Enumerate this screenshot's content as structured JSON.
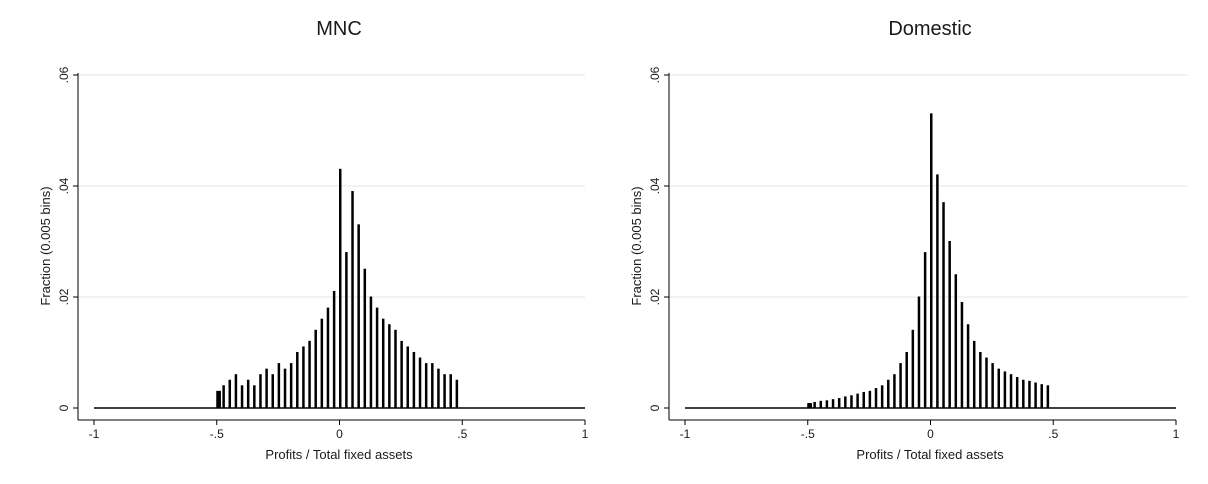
{
  "chart_data": [
    {
      "type": "bar",
      "title": "MNC",
      "xlabel": "Profits / Total fixed assets",
      "ylabel": "Fraction (0.005 bins)",
      "xlim": [
        -1,
        1
      ],
      "ylim": [
        0,
        0.06
      ],
      "xticks": [
        -1,
        -0.5,
        0,
        0.5,
        1
      ],
      "xtick_labels": [
        "-1",
        "-.5",
        "0",
        ".5",
        "1"
      ],
      "yticks": [
        0,
        0.02,
        0.04,
        0.06
      ],
      "ytick_labels": [
        "0",
        ".02",
        ".04",
        ".06"
      ],
      "grid": true,
      "bin_width": 0.005,
      "x": [
        -0.5,
        -0.475,
        -0.45,
        -0.425,
        -0.4,
        -0.375,
        -0.35,
        -0.325,
        -0.3,
        -0.275,
        -0.25,
        -0.225,
        -0.2,
        -0.175,
        -0.15,
        -0.125,
        -0.1,
        -0.075,
        -0.05,
        -0.025,
        0.0,
        0.025,
        0.05,
        0.075,
        0.1,
        0.125,
        0.15,
        0.175,
        0.2,
        0.225,
        0.25,
        0.275,
        0.3,
        0.325,
        0.35,
        0.375,
        0.4,
        0.425,
        0.45,
        0.475
      ],
      "values": [
        0.003,
        0.004,
        0.005,
        0.006,
        0.004,
        0.005,
        0.004,
        0.006,
        0.007,
        0.006,
        0.008,
        0.007,
        0.008,
        0.01,
        0.011,
        0.012,
        0.014,
        0.016,
        0.018,
        0.021,
        0.043,
        0.028,
        0.039,
        0.033,
        0.025,
        0.02,
        0.018,
        0.016,
        0.015,
        0.014,
        0.012,
        0.011,
        0.01,
        0.009,
        0.008,
        0.008,
        0.007,
        0.006,
        0.006,
        0.005
      ]
    },
    {
      "type": "bar",
      "title": "Domestic",
      "xlabel": "Profits / Total fixed assets",
      "ylabel": "Fraction (0.005 bins)",
      "xlim": [
        -1,
        1
      ],
      "ylim": [
        0,
        0.06
      ],
      "xticks": [
        -1,
        -0.5,
        0,
        0.5,
        1
      ],
      "xtick_labels": [
        "-1",
        "-.5",
        "0",
        ".5",
        "1"
      ],
      "yticks": [
        0,
        0.02,
        0.04,
        0.06
      ],
      "ytick_labels": [
        "0",
        ".02",
        ".04",
        ".06"
      ],
      "grid": true,
      "bin_width": 0.005,
      "x": [
        -0.5,
        -0.475,
        -0.45,
        -0.425,
        -0.4,
        -0.375,
        -0.35,
        -0.325,
        -0.3,
        -0.275,
        -0.25,
        -0.225,
        -0.2,
        -0.175,
        -0.15,
        -0.125,
        -0.1,
        -0.075,
        -0.05,
        -0.025,
        0.0,
        0.025,
        0.05,
        0.075,
        0.1,
        0.125,
        0.15,
        0.175,
        0.2,
        0.225,
        0.25,
        0.275,
        0.3,
        0.325,
        0.35,
        0.375,
        0.4,
        0.425,
        0.45,
        0.475
      ],
      "values": [
        0.0008,
        0.001,
        0.0012,
        0.0013,
        0.0015,
        0.0017,
        0.002,
        0.0022,
        0.0025,
        0.0028,
        0.003,
        0.0035,
        0.004,
        0.005,
        0.006,
        0.008,
        0.01,
        0.014,
        0.02,
        0.028,
        0.053,
        0.042,
        0.037,
        0.03,
        0.024,
        0.019,
        0.015,
        0.012,
        0.01,
        0.009,
        0.008,
        0.007,
        0.0065,
        0.006,
        0.0055,
        0.005,
        0.0048,
        0.0045,
        0.0042,
        0.004
      ]
    }
  ]
}
